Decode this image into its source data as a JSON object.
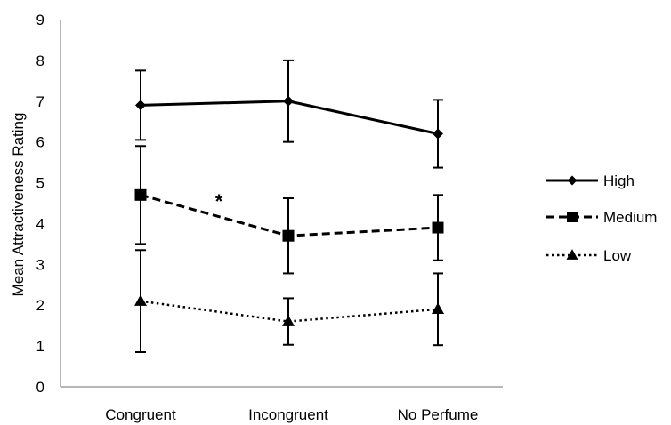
{
  "chart_data": {
    "type": "line",
    "title": "",
    "xlabel": "",
    "ylabel": "Mean Attractiveness Rating",
    "categories": [
      "Congruent",
      "Incongruent",
      "No Perfume"
    ],
    "ylim": [
      0,
      9
    ],
    "yticks": [
      "0",
      "1",
      "2",
      "3",
      "4",
      "5",
      "6",
      "7",
      "8",
      "9"
    ],
    "grid": false,
    "legend_position": "right",
    "series": [
      {
        "name": "High",
        "values": [
          6.9,
          7.0,
          6.2
        ],
        "error": [
          0.85,
          1.0,
          0.83
        ],
        "marker": "diamond",
        "line_style": "solid",
        "color": "#000000"
      },
      {
        "name": "Medium",
        "values": [
          4.7,
          3.7,
          3.9
        ],
        "error": [
          1.2,
          0.92,
          0.8
        ],
        "marker": "square",
        "line_style": "dashed",
        "color": "#000000"
      },
      {
        "name": "Low",
        "values": [
          2.1,
          1.6,
          1.9
        ],
        "error": [
          1.25,
          0.57,
          0.88
        ],
        "marker": "triangle",
        "line_style": "dotted",
        "color": "#000000"
      }
    ],
    "annotations": [
      {
        "text": "*",
        "x": 0.5,
        "y": 4.6
      }
    ]
  }
}
